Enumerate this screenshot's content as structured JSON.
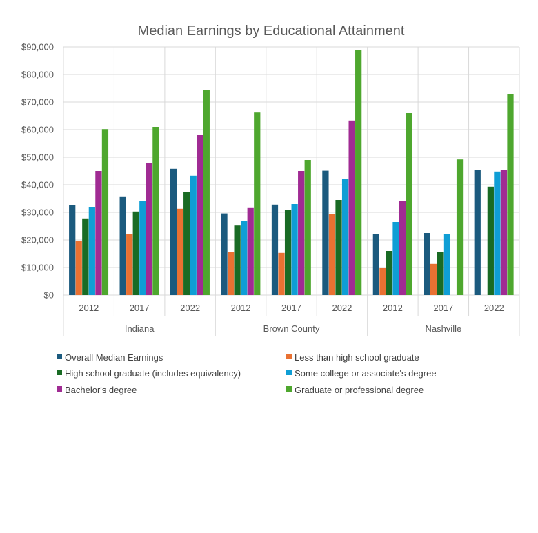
{
  "chart_data": {
    "type": "bar",
    "title": "Median Earnings by Educational Attainment",
    "xlabel": "",
    "ylabel": "",
    "ylim": [
      0,
      90000
    ],
    "yticks": [
      0,
      10000,
      20000,
      30000,
      40000,
      50000,
      60000,
      70000,
      80000,
      90000
    ],
    "ytick_labels": [
      "$0",
      "$10,000",
      "$20,000",
      "$30,000",
      "$40,000",
      "$50,000",
      "$60,000",
      "$70,000",
      "$80,000",
      "$90,000"
    ],
    "grid": true,
    "legend_position": "bottom",
    "groups": [
      {
        "name": "Indiana",
        "categories": [
          "2012",
          "2017",
          "2022"
        ]
      },
      {
        "name": "Brown County",
        "categories": [
          "2012",
          "2017",
          "2022"
        ]
      },
      {
        "name": "Nashville",
        "categories": [
          "2012",
          "2017",
          "2022"
        ]
      }
    ],
    "series": [
      {
        "name": "Overall Median Earnings",
        "color": "#1b5a7e",
        "values": [
          32700,
          35800,
          45800,
          29600,
          32800,
          45100,
          22000,
          22500,
          45300
        ]
      },
      {
        "name": "Less than high school graduate",
        "color": "#e97132",
        "values": [
          19600,
          22000,
          31300,
          15500,
          15300,
          29300,
          10000,
          11300,
          null
        ]
      },
      {
        "name": "High school graduate (includes equivalency)",
        "color": "#196b24",
        "values": [
          27800,
          30300,
          37300,
          25200,
          30800,
          34500,
          16000,
          15500,
          39300
        ]
      },
      {
        "name": "Some college or associate's degree",
        "color": "#0f9ed5",
        "values": [
          32000,
          34000,
          43300,
          27000,
          33000,
          42000,
          26500,
          22000,
          44800
        ]
      },
      {
        "name": "Bachelor's degree",
        "color": "#a02b93",
        "values": [
          45000,
          47800,
          58000,
          31800,
          45000,
          63300,
          34200,
          null,
          45300
        ]
      },
      {
        "name": "Graduate or professional degree",
        "color": "#4ea72e",
        "values": [
          60200,
          61000,
          74500,
          66200,
          49000,
          89000,
          66000,
          49200,
          73000
        ]
      }
    ]
  }
}
